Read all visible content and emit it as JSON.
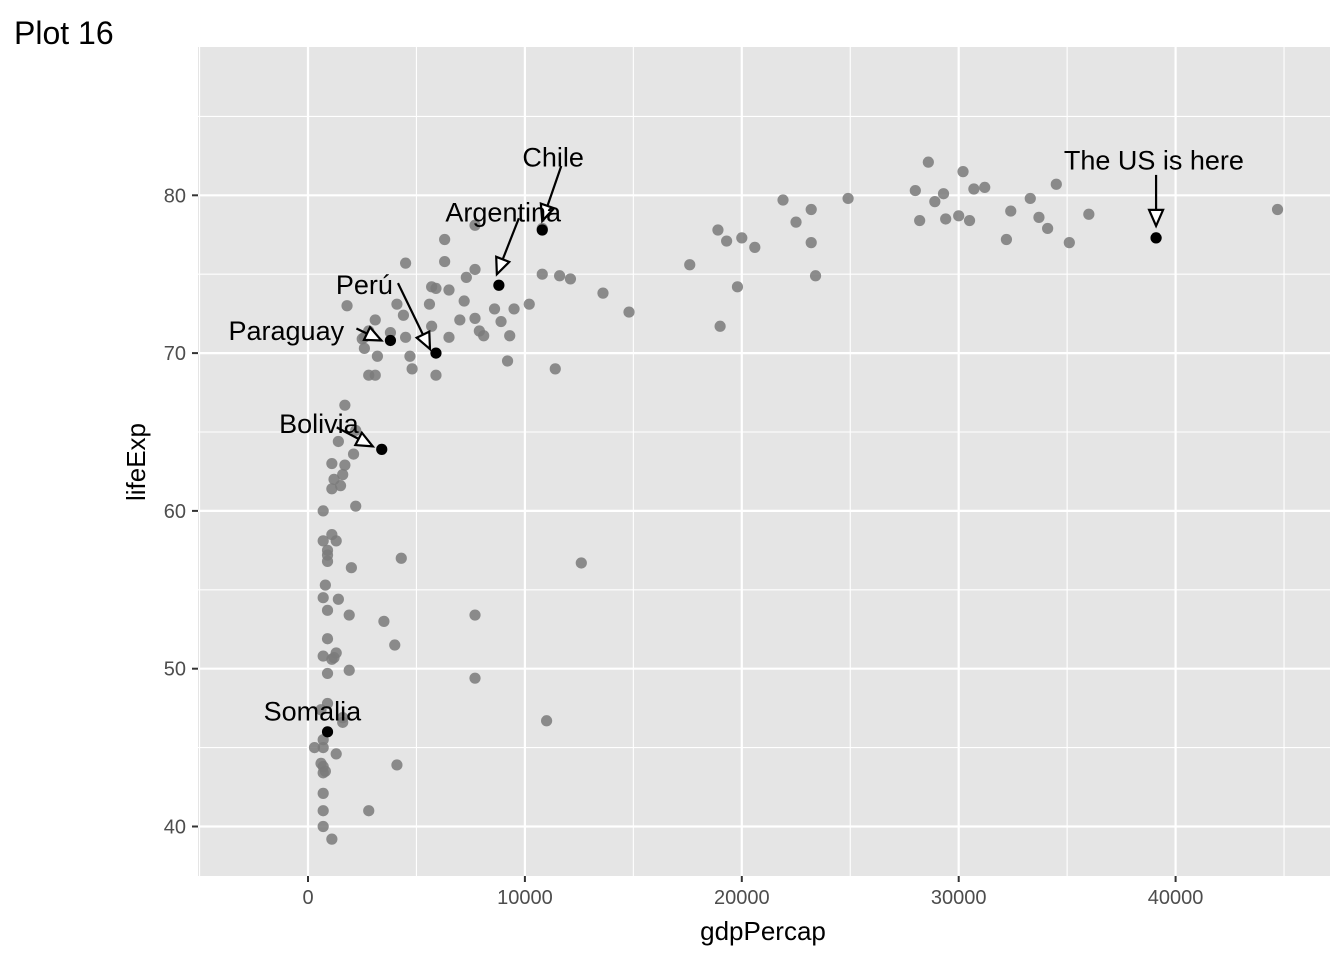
{
  "chart_data": {
    "type": "scatter",
    "title": "Plot 16",
    "xlabel": "gdpPercap",
    "ylabel": "lifeExp",
    "xlim": [
      -5000,
      47000
    ],
    "ylim": [
      36.5,
      89
    ],
    "x_ticks": [
      0,
      10000,
      20000,
      30000,
      40000
    ],
    "y_ticks": [
      40,
      50,
      60,
      70,
      80
    ],
    "x_tick_labels": [
      "0",
      "10000",
      "20000",
      "30000",
      "40000"
    ],
    "y_tick_labels": [
      "40",
      "50",
      "60",
      "70",
      "80"
    ],
    "grid": true,
    "colors": {
      "panel": "#e5e5e5",
      "grid": "#ffffff",
      "point": "#7a7a7a",
      "highlight": "#000000"
    },
    "series": [
      {
        "points": [
          [
            44700,
            79.1
          ],
          [
            39100,
            77.3
          ],
          [
            36000,
            78.8
          ],
          [
            35100,
            77.0
          ],
          [
            34500,
            80.7
          ],
          [
            34100,
            77.9
          ],
          [
            33700,
            78.6
          ],
          [
            33300,
            79.8
          ],
          [
            32400,
            79.0
          ],
          [
            32200,
            77.2
          ],
          [
            31200,
            80.5
          ],
          [
            30700,
            80.4
          ],
          [
            30500,
            78.4
          ],
          [
            30200,
            81.5
          ],
          [
            30000,
            78.7
          ],
          [
            29400,
            78.5
          ],
          [
            29300,
            80.1
          ],
          [
            28900,
            79.6
          ],
          [
            28600,
            82.1
          ],
          [
            28200,
            78.4
          ],
          [
            28000,
            80.3
          ],
          [
            24900,
            79.8
          ],
          [
            23400,
            74.9
          ],
          [
            23200,
            77.0
          ],
          [
            23200,
            79.1
          ],
          [
            22500,
            78.3
          ],
          [
            21900,
            79.7
          ],
          [
            20600,
            76.7
          ],
          [
            20000,
            77.3
          ],
          [
            19800,
            74.2
          ],
          [
            19300,
            77.1
          ],
          [
            19000,
            71.7
          ],
          [
            18900,
            77.8
          ],
          [
            17600,
            75.6
          ],
          [
            14800,
            72.6
          ],
          [
            13600,
            73.8
          ],
          [
            12600,
            56.7
          ],
          [
            12100,
            74.7
          ],
          [
            11600,
            74.9
          ],
          [
            11400,
            69.0
          ],
          [
            11000,
            46.7
          ],
          [
            10800,
            77.9
          ],
          [
            10800,
            75.0
          ],
          [
            10200,
            73.1
          ],
          [
            9500,
            72.8
          ],
          [
            9300,
            71.1
          ],
          [
            9200,
            69.5
          ],
          [
            8900,
            72.0
          ],
          [
            8600,
            72.8
          ],
          [
            8100,
            71.1
          ],
          [
            7900,
            71.4
          ],
          [
            7700,
            72.2
          ],
          [
            7700,
            75.3
          ],
          [
            7700,
            78.1
          ],
          [
            7700,
            53.4
          ],
          [
            7700,
            49.4
          ],
          [
            7300,
            74.8
          ],
          [
            7200,
            73.3
          ],
          [
            7000,
            72.1
          ],
          [
            6500,
            74.0
          ],
          [
            6500,
            71.0
          ],
          [
            6300,
            75.8
          ],
          [
            6300,
            77.2
          ],
          [
            5900,
            74.1
          ],
          [
            5900,
            68.6
          ],
          [
            5700,
            71.7
          ],
          [
            5700,
            74.2
          ],
          [
            5600,
            73.1
          ],
          [
            4800,
            69.0
          ],
          [
            4700,
            69.8
          ],
          [
            4500,
            71.0
          ],
          [
            4400,
            72.4
          ],
          [
            4500,
            75.7
          ],
          [
            4300,
            57.0
          ],
          [
            4100,
            73.1
          ],
          [
            4000,
            51.5
          ],
          [
            4100,
            43.9
          ],
          [
            3800,
            71.3
          ],
          [
            3500,
            53.0
          ],
          [
            3200,
            69.8
          ],
          [
            3100,
            68.6
          ],
          [
            3100,
            72.1
          ],
          [
            2800,
            71.4
          ],
          [
            2800,
            68.6
          ],
          [
            2600,
            70.3
          ],
          [
            2600,
            71.0
          ],
          [
            2500,
            70.9
          ],
          [
            2800,
            41.0
          ],
          [
            2200,
            65.1
          ],
          [
            2200,
            60.3
          ],
          [
            2100,
            63.6
          ],
          [
            2000,
            56.4
          ],
          [
            1900,
            53.4
          ],
          [
            1900,
            49.9
          ],
          [
            1800,
            73.0
          ],
          [
            1700,
            66.7
          ],
          [
            1700,
            62.9
          ],
          [
            1600,
            62.3
          ],
          [
            1500,
            61.6
          ],
          [
            1400,
            64.4
          ],
          [
            1400,
            54.4
          ],
          [
            1600,
            46.9
          ],
          [
            1600,
            46.6
          ],
          [
            1300,
            58.1
          ],
          [
            1300,
            51.0
          ],
          [
            1300,
            44.6
          ],
          [
            1100,
            63.0
          ],
          [
            1100,
            61.4
          ],
          [
            1100,
            58.5
          ],
          [
            1100,
            50.6
          ],
          [
            1100,
            39.2
          ],
          [
            1200,
            62.0
          ],
          [
            1200,
            50.7
          ],
          [
            900,
            57.5
          ],
          [
            900,
            57.2
          ],
          [
            900,
            56.8
          ],
          [
            900,
            53.7
          ],
          [
            900,
            51.9
          ],
          [
            900,
            49.7
          ],
          [
            900,
            47.8
          ],
          [
            800,
            55.3
          ],
          [
            700,
            54.5
          ],
          [
            700,
            60.0
          ],
          [
            700,
            58.1
          ],
          [
            700,
            50.8
          ],
          [
            600,
            47.4
          ],
          [
            600,
            44.0
          ],
          [
            700,
            45.5
          ],
          [
            700,
            45.0
          ],
          [
            700,
            43.8
          ],
          [
            800,
            43.5
          ],
          [
            700,
            43.4
          ],
          [
            700,
            42.1
          ],
          [
            700,
            41.0
          ],
          [
            700,
            40.0
          ],
          [
            300,
            45.0
          ]
        ]
      },
      {
        "points": [
          [
            39100,
            77.3
          ],
          [
            10800,
            77.8
          ],
          [
            8800,
            74.3
          ],
          [
            5900,
            70.0
          ],
          [
            3800,
            70.8
          ],
          [
            3400,
            63.9
          ],
          [
            900,
            46.0
          ]
        ]
      }
    ],
    "annotations": [
      {
        "text": "The US is here",
        "label_x": 39000,
        "label_y": 82.2,
        "point_x": 39100,
        "point_y": 77.3
      },
      {
        "text": "Chile",
        "label_x": 11300,
        "label_y": 82.4,
        "point_x": 10800,
        "point_y": 77.8
      },
      {
        "text": "Argentina",
        "label_x": 9000,
        "label_y": 78.9,
        "point_x": 8800,
        "point_y": 74.3
      },
      {
        "text": "Perú",
        "label_x": 2600,
        "label_y": 74.3,
        "point_x": 5900,
        "point_y": 70.0
      },
      {
        "text": "Paraguay",
        "label_x": -1000,
        "label_y": 71.4,
        "point_x": 3800,
        "point_y": 70.8
      },
      {
        "text": "Bolivia",
        "label_x": 500,
        "label_y": 65.5,
        "point_x": 3400,
        "point_y": 63.9
      },
      {
        "text": "Somalia",
        "label_x": 200,
        "label_y": 47.3,
        "point_x": 900,
        "point_y": 46.0
      }
    ]
  }
}
